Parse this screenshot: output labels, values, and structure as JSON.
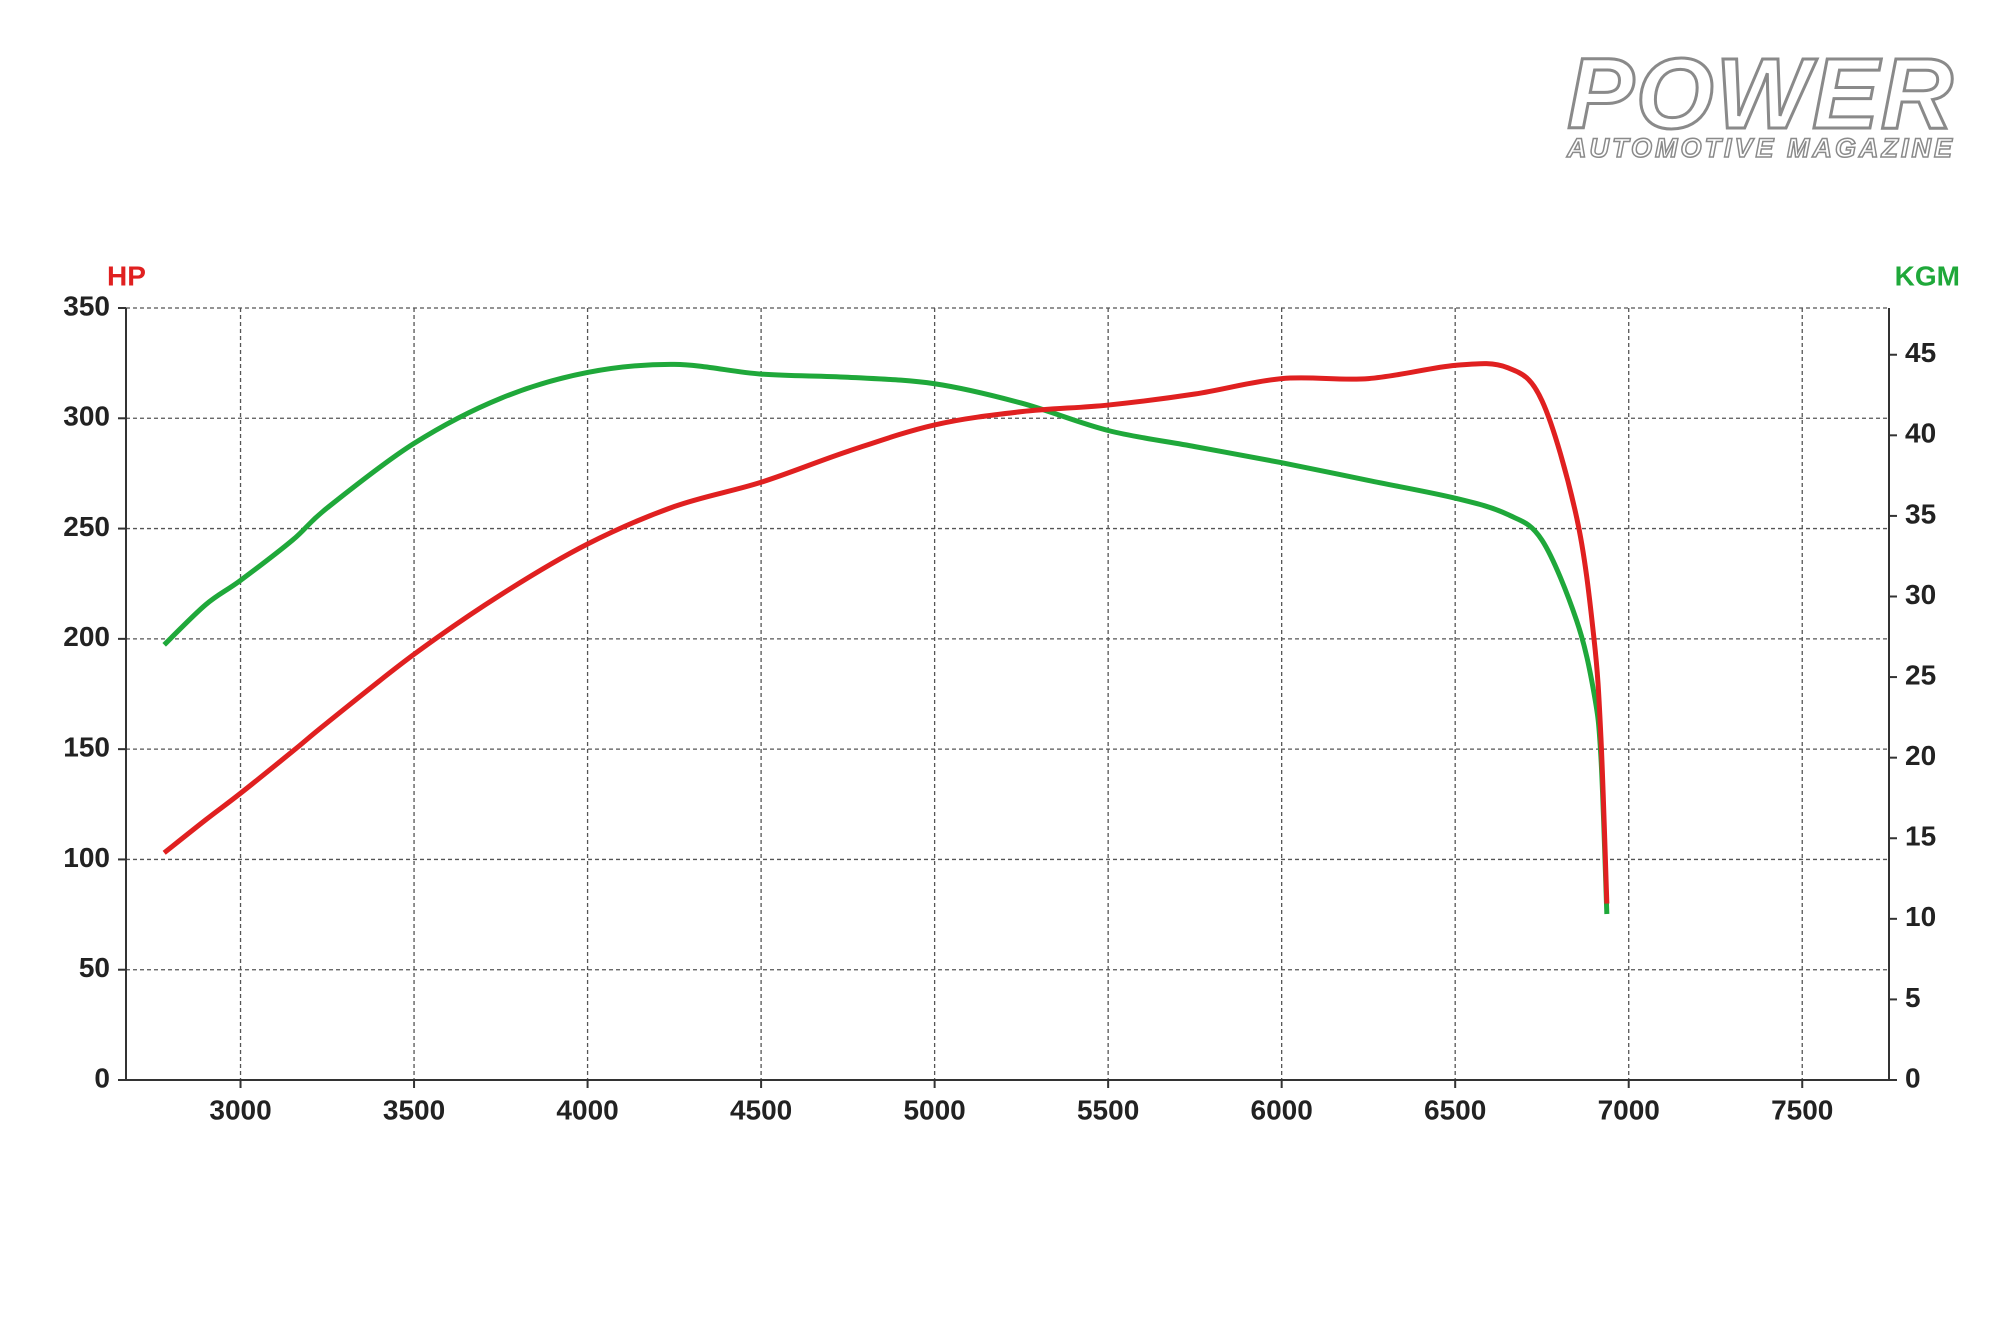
{
  "logo": {
    "title": "POWER",
    "subtitle": "AUTOMOTIVE MAGAZINE"
  },
  "chart_data": {
    "type": "line",
    "x": [
      2780,
      2900,
      3000,
      3150,
      3250,
      3500,
      3750,
      4000,
      4250,
      4500,
      4750,
      5000,
      5250,
      5500,
      5750,
      6000,
      6250,
      6500,
      6650,
      6750,
      6850,
      6900,
      6920,
      6937
    ],
    "series": [
      {
        "name": "HP",
        "color": "#e02020",
        "values": [
          103,
          118,
          130,
          149,
          162,
          193,
          220,
          243,
          260,
          271,
          285,
          297,
          303,
          306,
          311,
          318,
          318,
          324,
          323,
          308,
          255,
          200,
          155,
          80
        ]
      },
      {
        "name": "KGM",
        "color": "#1fa83a",
        "axis": "y2",
        "values": [
          27.0,
          29.5,
          31.0,
          33.5,
          35.5,
          39.5,
          42.3,
          43.9,
          44.4,
          43.8,
          43.6,
          43.2,
          42.0,
          40.3,
          39.3,
          38.3,
          37.2,
          36.1,
          35.1,
          33.5,
          28.5,
          24,
          20,
          10.3
        ]
      }
    ],
    "xlim": [
      2670,
      7750
    ],
    "xticks": [
      3000,
      3500,
      4000,
      4500,
      5000,
      5500,
      6000,
      6500,
      7000,
      7500
    ],
    "ylim": [
      0,
      350
    ],
    "yticks": [
      0,
      50,
      100,
      150,
      200,
      250,
      300,
      350
    ],
    "y2lim": [
      0,
      47.9
    ],
    "y2ticks": [
      0,
      5,
      10,
      15,
      20,
      25,
      30,
      35,
      40,
      45
    ],
    "grid": true
  }
}
